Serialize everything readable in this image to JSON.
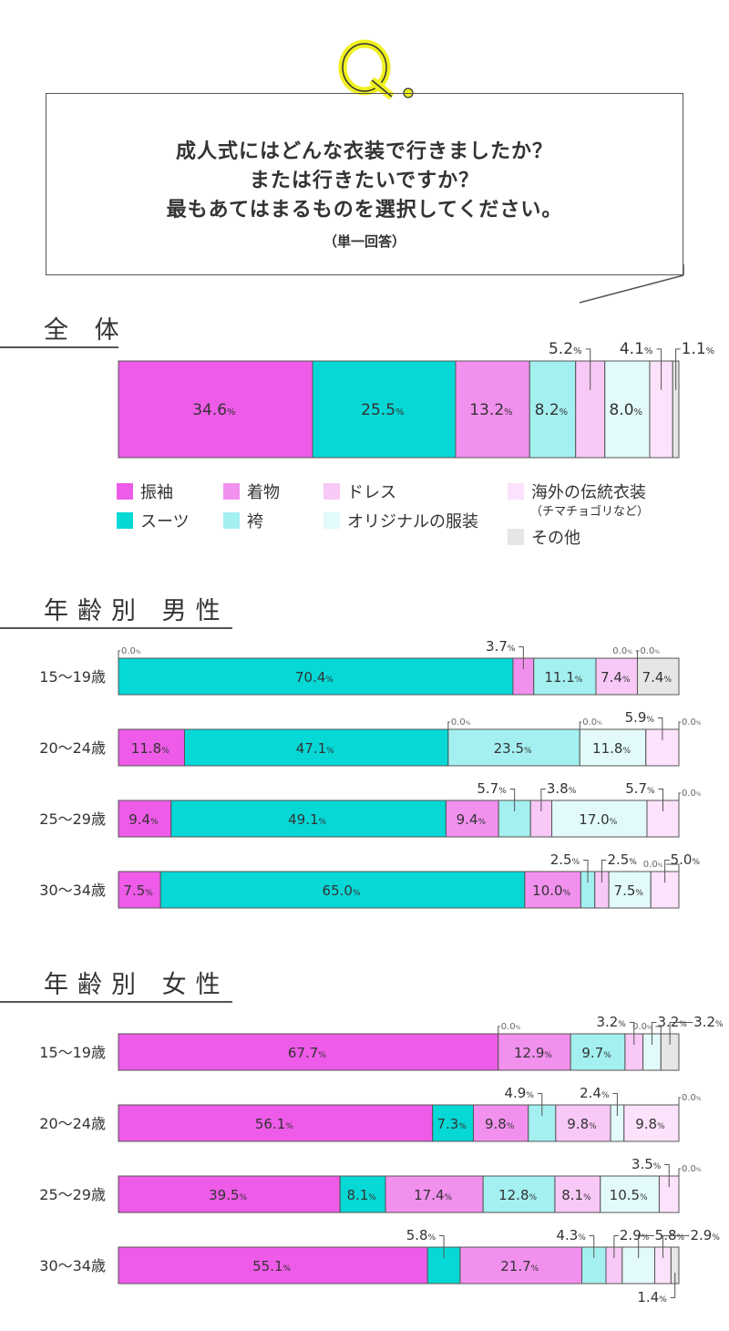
{
  "question": {
    "mark": "Q.",
    "lines": [
      "成人式にはどんな衣装で行きましたか？",
      "または行きたいですか？",
      "最もあてはまるものを選択してください。"
    ],
    "note": "（単一回答）"
  },
  "sections": {
    "overall": "全 体",
    "male": "年齢別 男性",
    "female": "年齢別 女性"
  },
  "legend": [
    {
      "label": "振袖",
      "color": "#ee5be8"
    },
    {
      "label": "スーツ",
      "color": "#06d8d6"
    },
    {
      "label": "着物",
      "color": "#f290ee"
    },
    {
      "label": "袴",
      "color": "#a4f0f0"
    },
    {
      "label": "ドレス",
      "color": "#f8c8f6"
    },
    {
      "label": "オリジナルの服装",
      "color": "#e2fafa"
    },
    {
      "label": "海外の伝統衣装",
      "sublabel": "（チマチョゴリなど）",
      "color": "#fde2fb"
    },
    {
      "label": "その他",
      "color": "#e6e6e6"
    }
  ],
  "chart_data": [
    {
      "type": "bar",
      "stacked": "100%",
      "orientation": "horizontal",
      "title": "全 体",
      "unit": "%",
      "series_names": [
        "振袖",
        "スーツ",
        "着物",
        "袴",
        "ドレス",
        "オリジナルの服装",
        "海外の伝統衣装（チマチョゴリなど）",
        "その他"
      ],
      "rows": [
        {
          "label": "",
          "values": [
            34.6,
            25.5,
            13.2,
            8.2,
            5.2,
            8.0,
            4.1,
            1.1
          ]
        }
      ]
    },
    {
      "type": "bar",
      "stacked": "100%",
      "orientation": "horizontal",
      "title": "年齢別 男性",
      "unit": "%",
      "series_names": [
        "振袖",
        "スーツ",
        "着物",
        "袴",
        "ドレス",
        "オリジナルの服装",
        "海外の伝統衣装（チマチョゴリなど）",
        "その他"
      ],
      "rows": [
        {
          "label": "15〜19歳",
          "values": [
            0.0,
            70.4,
            3.7,
            11.1,
            7.4,
            0.0,
            0.0,
            7.4
          ]
        },
        {
          "label": "20〜24歳",
          "values": [
            11.8,
            47.1,
            0.0,
            23.5,
            0.0,
            11.8,
            5.9,
            0.0
          ]
        },
        {
          "label": "25〜29歳",
          "values": [
            9.4,
            49.1,
            9.4,
            5.7,
            3.8,
            17.0,
            5.7,
            0.0
          ]
        },
        {
          "label": "30〜34歳",
          "values": [
            7.5,
            65.0,
            10.0,
            2.5,
            2.5,
            7.5,
            5.0,
            0.0
          ]
        }
      ]
    },
    {
      "type": "bar",
      "stacked": "100%",
      "orientation": "horizontal",
      "title": "年齢別 女性",
      "unit": "%",
      "series_names": [
        "振袖",
        "スーツ",
        "着物",
        "袴",
        "ドレス",
        "オリジナルの服装",
        "海外の伝統衣装（チマチョゴリなど）",
        "その他"
      ],
      "rows": [
        {
          "label": "15〜19歳",
          "values": [
            67.7,
            0.0,
            12.9,
            9.7,
            3.2,
            3.2,
            0.0,
            3.2
          ]
        },
        {
          "label": "20〜24歳",
          "values": [
            56.1,
            7.3,
            9.8,
            4.9,
            9.8,
            2.4,
            9.8,
            0.0
          ]
        },
        {
          "label": "25〜29歳",
          "values": [
            39.5,
            8.1,
            17.4,
            12.8,
            8.1,
            10.5,
            3.5,
            0.0
          ]
        },
        {
          "label": "30〜34歳",
          "values": [
            55.1,
            5.8,
            21.7,
            4.3,
            2.9,
            5.8,
            2.9,
            1.4
          ]
        }
      ]
    }
  ]
}
